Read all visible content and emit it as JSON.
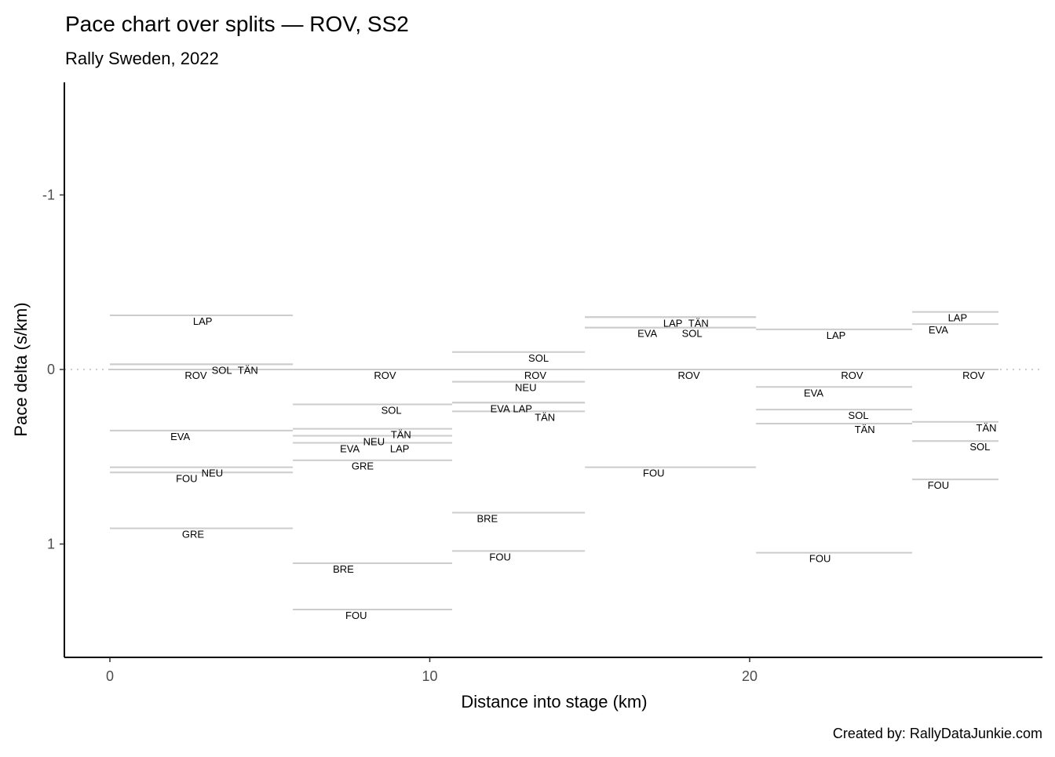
{
  "chart_data": {
    "type": "segment",
    "title": "Pace chart over splits — ROV, SS2",
    "subtitle": "Rally Sweden, 2022",
    "xlabel": "Distance into stage (km)",
    "ylabel": "Pace delta (s/km)",
    "caption": "Created by: RallyDataJunkie.com",
    "xlim": [
      -1.4,
      29.2
    ],
    "ylim": [
      -1.65,
      1.65
    ],
    "y_reversed": true,
    "x_ticks": [
      0,
      10,
      20
    ],
    "y_ticks": [
      -1,
      0,
      1
    ],
    "reference_line": 0,
    "grid": false,
    "line_color": "#cccccc",
    "splits": [
      {
        "start": 0,
        "end": 5.72,
        "drivers": [
          {
            "code": "LAP",
            "pace": -0.31,
            "label_x": 2.9
          },
          {
            "code": "SOL",
            "pace": -0.03,
            "label_x": 3.5
          },
          {
            "code": "TÄN",
            "pace": -0.03,
            "label_x": 3.7
          },
          {
            "code": "ROV",
            "pace": 0,
            "label_x": 3.3
          },
          {
            "code": "EVA",
            "pace": 0.35,
            "label_x": 2.2
          },
          {
            "code": "NEU",
            "pace": 0.56,
            "label_x": 3.2
          },
          {
            "code": "FOU",
            "pace": 0.59,
            "label_x": 2.4
          },
          {
            "code": "GRE",
            "pace": 0.91,
            "label_x": 2.6
          }
        ]
      },
      {
        "start": 5.72,
        "end": 10.7,
        "drivers": [
          {
            "code": "ROV",
            "pace": 0,
            "label_x": 8.6
          },
          {
            "code": "SOL",
            "pace": 0.2,
            "label_x": 8.8
          },
          {
            "code": "TÄN",
            "pace": 0.34,
            "label_x": 9.1
          },
          {
            "code": "NEU",
            "pace": 0.38,
            "label_x": 8.5
          },
          {
            "code": "EVA",
            "pace": 0.42,
            "label_x": 7.5
          },
          {
            "code": "LAP",
            "pace": 0.42,
            "label_x": 8.2
          },
          {
            "code": "GRE",
            "pace": 0.52,
            "label_x": 7.9
          },
          {
            "code": "BRE",
            "pace": 1.11,
            "label_x": 7.3
          },
          {
            "code": "FOU",
            "pace": 1.375,
            "label_x": 7.7
          }
        ]
      },
      {
        "start": 10.7,
        "end": 14.85,
        "drivers": [
          {
            "code": "SOL",
            "pace": -0.1,
            "label_x": 13.4
          },
          {
            "code": "ROV",
            "pace": 0,
            "label_x": 13.3
          },
          {
            "code": "NEU",
            "pace": 0.07,
            "label_x": 13.0
          },
          {
            "code": "EVA",
            "pace": 0.19,
            "label_x": 12.2
          },
          {
            "code": "LAP",
            "pace": 0.19,
            "label_x": 12.9
          },
          {
            "code": "TÄN",
            "pace": 0.24,
            "label_x": 13.6
          },
          {
            "code": "BRE",
            "pace": 0.82,
            "label_x": 11.8
          },
          {
            "code": "FOU",
            "pace": 1.04,
            "label_x": 12.2
          }
        ]
      },
      {
        "start": 14.85,
        "end": 20.2,
        "drivers": [
          {
            "code": "LAP",
            "pace": -0.3,
            "label_x": 17.6
          },
          {
            "code": "TÄN",
            "pace": -0.3,
            "label_x": 18.4
          },
          {
            "code": "EVA",
            "pace": -0.24,
            "label_x": 16.8
          },
          {
            "code": "SOL",
            "pace": -0.24,
            "label_x": 18.2
          },
          {
            "code": "ROV",
            "pace": 0,
            "label_x": 18.1
          },
          {
            "code": "FOU",
            "pace": 0.56,
            "label_x": 17.0
          }
        ]
      },
      {
        "start": 20.2,
        "end": 25.08,
        "drivers": [
          {
            "code": "LAP",
            "pace": -0.23,
            "label_x": 22.7
          },
          {
            "code": "ROV",
            "pace": 0,
            "label_x": 23.2
          },
          {
            "code": "EVA",
            "pace": 0.1,
            "label_x": 22.0
          },
          {
            "code": "SOL",
            "pace": 0.23,
            "label_x": 23.4
          },
          {
            "code": "TÄN",
            "pace": 0.31,
            "label_x": 23.6
          },
          {
            "code": "FOU",
            "pace": 1.05,
            "label_x": 22.2
          }
        ]
      },
      {
        "start": 25.08,
        "end": 27.78,
        "drivers": [
          {
            "code": "LAP",
            "pace": -0.33,
            "label_x": 26.5
          },
          {
            "code": "EVA",
            "pace": -0.26,
            "label_x": 25.9
          },
          {
            "code": "ROV",
            "pace": 0,
            "label_x": 27.0
          },
          {
            "code": "TÄN",
            "pace": 0.3,
            "label_x": 27.4
          },
          {
            "code": "SOL",
            "pace": 0.41,
            "label_x": 27.2
          },
          {
            "code": "FOU",
            "pace": 0.63,
            "label_x": 25.9
          }
        ]
      }
    ]
  }
}
